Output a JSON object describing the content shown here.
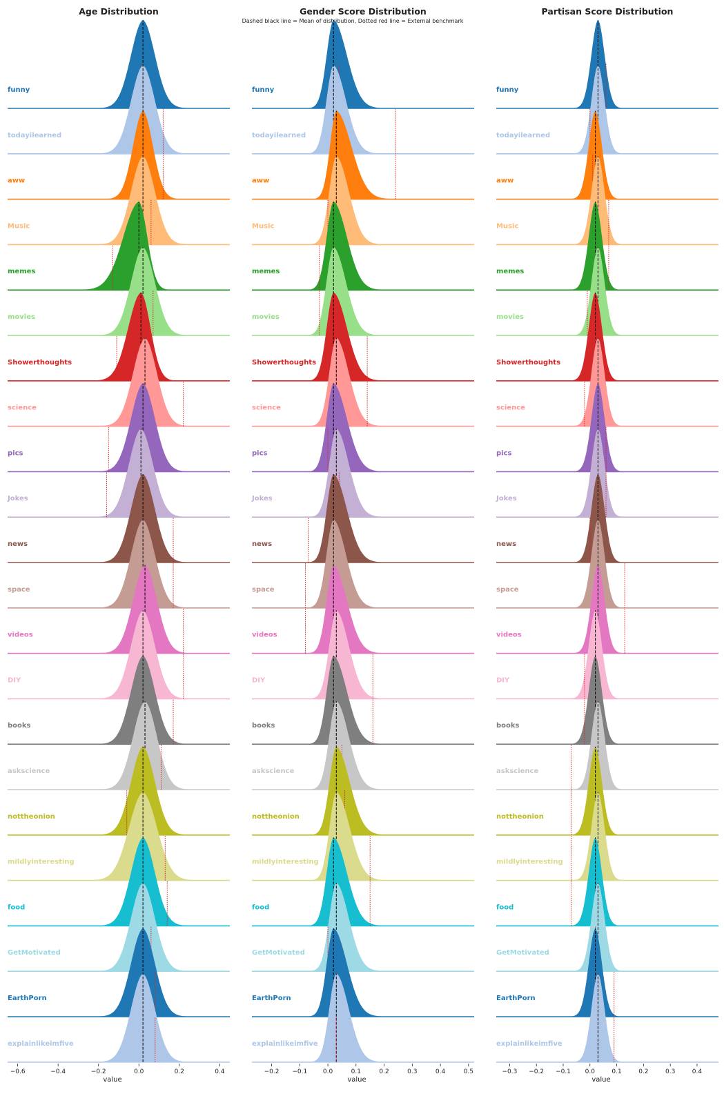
{
  "figure": {
    "subtitle": "Dashed black line = Mean of distribution, Dotted red line = External benchmark"
  },
  "chart_data": [
    {
      "type": "area",
      "title": "Age Distribution",
      "xlabel": "value",
      "xlim": [
        -0.65,
        0.45
      ],
      "xticks": [
        -0.6,
        -0.4,
        -0.2,
        0.0,
        0.2,
        0.4
      ],
      "xtick_labels": [
        "−0.6",
        "−0.4",
        "−0.2",
        "0.0",
        "0.2",
        "0.4"
      ],
      "series": [
        {
          "name": "funny",
          "color": "#1f77b4",
          "mean": 0.02,
          "sd": 0.06,
          "skew": 0.0,
          "benchmark": 0.01
        },
        {
          "name": "todayilearned",
          "color": "#aec7e8",
          "mean": 0.02,
          "sd": 0.06,
          "skew": 0.0,
          "benchmark": 0.12
        },
        {
          "name": "aww",
          "color": "#ff7f0e",
          "mean": 0.02,
          "sd": 0.05,
          "skew": 0.0,
          "benchmark": 0.12
        },
        {
          "name": "Music",
          "color": "#ffbb78",
          "mean": 0.02,
          "sd": 0.06,
          "skew": 0.0,
          "benchmark": 0.06
        },
        {
          "name": "memes",
          "color": "#2ca02c",
          "mean": 0.0,
          "sd": 0.07,
          "skew": -0.4,
          "benchmark": -0.13
        },
        {
          "name": "movies",
          "color": "#98df8a",
          "mean": 0.02,
          "sd": 0.06,
          "skew": 0.0,
          "benchmark": 0.07
        },
        {
          "name": "Showerthoughts",
          "color": "#d62728",
          "mean": 0.01,
          "sd": 0.06,
          "skew": -0.2,
          "benchmark": -0.11
        },
        {
          "name": "science",
          "color": "#ff9896",
          "mean": 0.03,
          "sd": 0.06,
          "skew": 0.0,
          "benchmark": 0.22
        },
        {
          "name": "pics",
          "color": "#9467bd",
          "mean": 0.02,
          "sd": 0.06,
          "skew": 0.0,
          "benchmark": -0.15
        },
        {
          "name": "Jokes",
          "color": "#c5b0d5",
          "mean": 0.01,
          "sd": 0.06,
          "skew": 0.0,
          "benchmark": -0.16
        },
        {
          "name": "news",
          "color": "#8c564b",
          "mean": 0.02,
          "sd": 0.06,
          "skew": 0.0,
          "benchmark": 0.17
        },
        {
          "name": "space",
          "color": "#c49c94",
          "mean": 0.02,
          "sd": 0.06,
          "skew": 0.0,
          "benchmark": 0.17
        },
        {
          "name": "videos",
          "color": "#e377c2",
          "mean": 0.03,
          "sd": 0.06,
          "skew": 0.0,
          "benchmark": 0.22
        },
        {
          "name": "DIY",
          "color": "#f7b6d2",
          "mean": 0.02,
          "sd": 0.06,
          "skew": 0.0,
          "benchmark": 0.22
        },
        {
          "name": "books",
          "color": "#7f7f7f",
          "mean": 0.02,
          "sd": 0.06,
          "skew": 0.0,
          "benchmark": 0.17
        },
        {
          "name": "askscience",
          "color": "#c7c7c7",
          "mean": 0.03,
          "sd": 0.06,
          "skew": 0.0,
          "benchmark": 0.11
        },
        {
          "name": "nottheonion",
          "color": "#bcbd22",
          "mean": 0.02,
          "sd": 0.06,
          "skew": 0.0,
          "benchmark": -0.06
        },
        {
          "name": "mildlyinteresting",
          "color": "#dbdb8d",
          "mean": 0.02,
          "sd": 0.07,
          "skew": 0.0,
          "benchmark": 0.13
        },
        {
          "name": "food",
          "color": "#17becf",
          "mean": 0.02,
          "sd": 0.06,
          "skew": 0.0,
          "benchmark": 0.14
        },
        {
          "name": "GetMotivated",
          "color": "#9edae5",
          "mean": 0.02,
          "sd": 0.06,
          "skew": 0.0,
          "benchmark": 0.06
        },
        {
          "name": "EarthPorn",
          "color": "#1f77b4",
          "mean": 0.02,
          "sd": 0.06,
          "skew": 0.0,
          "benchmark": 0.08
        },
        {
          "name": "explainlikeimfive",
          "color": "#aec7e8",
          "mean": 0.02,
          "sd": 0.06,
          "skew": 0.0,
          "benchmark": 0.08
        }
      ]
    },
    {
      "type": "area",
      "title": "Gender Score Distribution",
      "xlabel": "value",
      "xlim": [
        -0.27,
        0.52
      ],
      "xticks": [
        -0.2,
        -0.1,
        0.0,
        0.1,
        0.2,
        0.3,
        0.4,
        0.5
      ],
      "xtick_labels": [
        "−0.2",
        "−0.1",
        "0.0",
        "0.1",
        "0.2",
        "0.3",
        "0.4",
        "0.5"
      ],
      "series": [
        {
          "name": "funny",
          "color": "#1f77b4",
          "mean": 0.02,
          "sd": 0.03,
          "skew": 0.6,
          "benchmark": 0.04
        },
        {
          "name": "todayilearned",
          "color": "#aec7e8",
          "mean": 0.02,
          "sd": 0.03,
          "skew": 0.5,
          "benchmark": 0.24
        },
        {
          "name": "aww",
          "color": "#ff7f0e",
          "mean": 0.03,
          "sd": 0.03,
          "skew": 0.8,
          "benchmark": 0.24
        },
        {
          "name": "Music",
          "color": "#ffbb78",
          "mean": 0.03,
          "sd": 0.03,
          "skew": 0.5,
          "benchmark": 0.0
        },
        {
          "name": "memes",
          "color": "#2ca02c",
          "mean": 0.02,
          "sd": 0.03,
          "skew": 0.6,
          "benchmark": -0.03
        },
        {
          "name": "movies",
          "color": "#98df8a",
          "mean": 0.02,
          "sd": 0.03,
          "skew": 0.5,
          "benchmark": -0.03
        },
        {
          "name": "Showerthoughts",
          "color": "#d62728",
          "mean": 0.02,
          "sd": 0.03,
          "skew": 0.6,
          "benchmark": 0.14
        },
        {
          "name": "science",
          "color": "#ff9896",
          "mean": 0.03,
          "sd": 0.03,
          "skew": 0.5,
          "benchmark": 0.14
        },
        {
          "name": "pics",
          "color": "#9467bd",
          "mean": 0.02,
          "sd": 0.03,
          "skew": 0.6,
          "benchmark": 0.0
        },
        {
          "name": "Jokes",
          "color": "#c5b0d5",
          "mean": 0.03,
          "sd": 0.03,
          "skew": 0.5,
          "benchmark": 0.04
        },
        {
          "name": "news",
          "color": "#8c564b",
          "mean": 0.02,
          "sd": 0.03,
          "skew": 0.6,
          "benchmark": -0.07
        },
        {
          "name": "space",
          "color": "#c49c94",
          "mean": 0.02,
          "sd": 0.03,
          "skew": 0.5,
          "benchmark": -0.08
        },
        {
          "name": "videos",
          "color": "#e377c2",
          "mean": 0.02,
          "sd": 0.03,
          "skew": 0.6,
          "benchmark": -0.08
        },
        {
          "name": "DIY",
          "color": "#f7b6d2",
          "mean": 0.03,
          "sd": 0.03,
          "skew": 0.5,
          "benchmark": 0.16
        },
        {
          "name": "books",
          "color": "#7f7f7f",
          "mean": 0.02,
          "sd": 0.03,
          "skew": 0.6,
          "benchmark": 0.16
        },
        {
          "name": "askscience",
          "color": "#c7c7c7",
          "mean": 0.03,
          "sd": 0.03,
          "skew": 0.5,
          "benchmark": 0.05
        },
        {
          "name": "nottheonion",
          "color": "#bcbd22",
          "mean": 0.03,
          "sd": 0.03,
          "skew": 0.6,
          "benchmark": 0.06
        },
        {
          "name": "mildlyinteresting",
          "color": "#dbdb8d",
          "mean": 0.03,
          "sd": 0.03,
          "skew": 0.6,
          "benchmark": 0.15
        },
        {
          "name": "food",
          "color": "#17becf",
          "mean": 0.02,
          "sd": 0.03,
          "skew": 0.6,
          "benchmark": 0.15
        },
        {
          "name": "GetMotivated",
          "color": "#9edae5",
          "mean": 0.03,
          "sd": 0.03,
          "skew": 0.5,
          "benchmark": 0.0
        },
        {
          "name": "EarthPorn",
          "color": "#1f77b4",
          "mean": 0.02,
          "sd": 0.03,
          "skew": 0.6,
          "benchmark": 0.03
        },
        {
          "name": "explainlikeimfive",
          "color": "#aec7e8",
          "mean": 0.03,
          "sd": 0.03,
          "skew": 0.5,
          "benchmark": 0.03
        }
      ]
    },
    {
      "type": "area",
      "title": "Partisan Score Distribution",
      "xlabel": "value",
      "xlim": [
        -0.35,
        0.48
      ],
      "xticks": [
        -0.3,
        -0.2,
        -0.1,
        0.0,
        0.1,
        0.2,
        0.3,
        0.4
      ],
      "xtick_labels": [
        "−0.3",
        "−0.2",
        "−0.1",
        "0.0",
        "0.1",
        "0.2",
        "0.3",
        "0.4"
      ],
      "series": [
        {
          "name": "funny",
          "color": "#1f77b4",
          "mean": 0.03,
          "sd": 0.025,
          "skew": 0.0,
          "benchmark": 0.06
        },
        {
          "name": "todayilearned",
          "color": "#aec7e8",
          "mean": 0.03,
          "sd": 0.025,
          "skew": 0.0,
          "benchmark": 0.0
        },
        {
          "name": "aww",
          "color": "#ff7f0e",
          "mean": 0.02,
          "sd": 0.025,
          "skew": 0.0,
          "benchmark": 0.01
        },
        {
          "name": "Music",
          "color": "#ffbb78",
          "mean": 0.03,
          "sd": 0.025,
          "skew": 0.0,
          "benchmark": 0.07
        },
        {
          "name": "memes",
          "color": "#2ca02c",
          "mean": 0.02,
          "sd": 0.025,
          "skew": 0.0,
          "benchmark": 0.07
        },
        {
          "name": "movies",
          "color": "#98df8a",
          "mean": 0.03,
          "sd": 0.025,
          "skew": 0.0,
          "benchmark": -0.01
        },
        {
          "name": "Showerthoughts",
          "color": "#d62728",
          "mean": 0.02,
          "sd": 0.025,
          "skew": 0.0,
          "benchmark": 0.02
        },
        {
          "name": "science",
          "color": "#ff9896",
          "mean": 0.03,
          "sd": 0.025,
          "skew": 0.0,
          "benchmark": -0.02
        },
        {
          "name": "pics",
          "color": "#9467bd",
          "mean": 0.03,
          "sd": 0.025,
          "skew": 0.0,
          "benchmark": 0.06
        },
        {
          "name": "Jokes",
          "color": "#c5b0d5",
          "mean": 0.03,
          "sd": 0.025,
          "skew": 0.0,
          "benchmark": 0.06
        },
        {
          "name": "news",
          "color": "#8c564b",
          "mean": 0.03,
          "sd": 0.025,
          "skew": 0.0,
          "benchmark": 0.0
        },
        {
          "name": "space",
          "color": "#c49c94",
          "mean": 0.03,
          "sd": 0.025,
          "skew": 0.0,
          "benchmark": 0.13
        },
        {
          "name": "videos",
          "color": "#e377c2",
          "mean": 0.03,
          "sd": 0.025,
          "skew": 0.0,
          "benchmark": 0.13
        },
        {
          "name": "DIY",
          "color": "#f7b6d2",
          "mean": 0.02,
          "sd": 0.025,
          "skew": 0.0,
          "benchmark": -0.02
        },
        {
          "name": "books",
          "color": "#7f7f7f",
          "mean": 0.02,
          "sd": 0.025,
          "skew": 0.0,
          "benchmark": -0.02
        },
        {
          "name": "askscience",
          "color": "#c7c7c7",
          "mean": 0.03,
          "sd": 0.025,
          "skew": 0.0,
          "benchmark": -0.07
        },
        {
          "name": "nottheonion",
          "color": "#bcbd22",
          "mean": 0.02,
          "sd": 0.025,
          "skew": 0.0,
          "benchmark": -0.07
        },
        {
          "name": "mildlyinteresting",
          "color": "#dbdb8d",
          "mean": 0.03,
          "sd": 0.025,
          "skew": 0.0,
          "benchmark": -0.07
        },
        {
          "name": "food",
          "color": "#17becf",
          "mean": 0.02,
          "sd": 0.025,
          "skew": 0.0,
          "benchmark": -0.07
        },
        {
          "name": "GetMotivated",
          "color": "#9edae5",
          "mean": 0.03,
          "sd": 0.025,
          "skew": 0.0,
          "benchmark": 0.02
        },
        {
          "name": "EarthPorn",
          "color": "#1f77b4",
          "mean": 0.02,
          "sd": 0.025,
          "skew": 0.0,
          "benchmark": 0.09
        },
        {
          "name": "explainlikeimfive",
          "color": "#aec7e8",
          "mean": 0.03,
          "sd": 0.025,
          "skew": 0.0,
          "benchmark": 0.09
        }
      ]
    }
  ]
}
